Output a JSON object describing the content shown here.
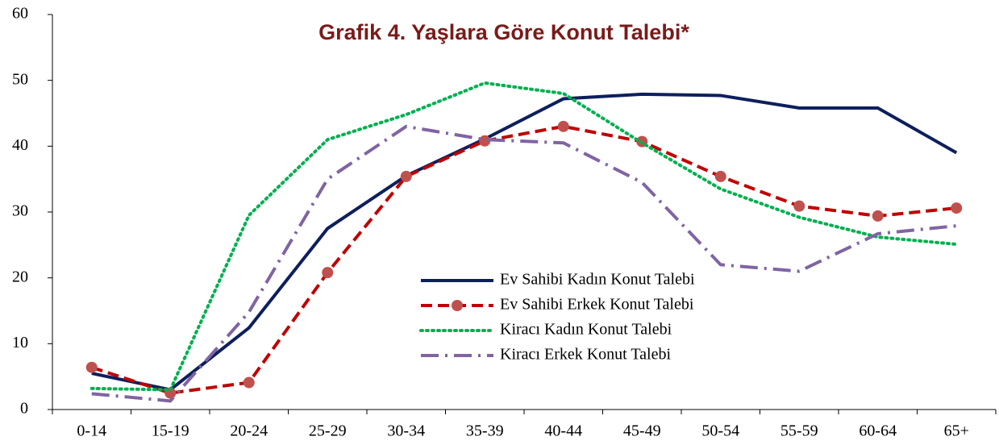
{
  "chart_data": {
    "type": "line",
    "title": "Grafik 4. Yaşlara Göre Konut Talebi*",
    "categories": [
      "0-14",
      "15-19",
      "20-24",
      "25-29",
      "30-34",
      "35-39",
      "40-44",
      "45-49",
      "50-54",
      "55-59",
      "60-64",
      "65+"
    ],
    "series": [
      {
        "name": "Ev Sahibi Kadın Konut Talebi",
        "color": "#0d1f5c",
        "line_style": "solid",
        "markers": false,
        "values": [
          5.5,
          3.0,
          12.4,
          27.5,
          35.5,
          41.1,
          47.2,
          47.9,
          47.7,
          45.8,
          45.8,
          39.0
        ]
      },
      {
        "name": "Ev Sahibi Erkek Konut Talebi",
        "color": "#c00000",
        "marker_color": "#c0504d",
        "line_style": "dashed",
        "markers": true,
        "values": [
          6.4,
          2.5,
          4.1,
          20.8,
          35.4,
          40.8,
          43.0,
          40.7,
          35.4,
          30.9,
          29.4,
          30.6
        ]
      },
      {
        "name": "Kiracı Kadın Konut Talebi",
        "color": "#00b050",
        "line_style": "dotted",
        "markers": false,
        "values": [
          3.2,
          3.0,
          29.5,
          41.0,
          44.8,
          49.6,
          48.0,
          40.5,
          33.5,
          29.2,
          26.2,
          25.1
        ]
      },
      {
        "name": "Kiracı Erkek Konut Talebi",
        "color": "#8064a2",
        "line_style": "dashdot",
        "markers": false,
        "values": [
          2.4,
          1.3,
          14.8,
          35.0,
          43.0,
          41.0,
          40.5,
          34.5,
          22.0,
          21.0,
          26.7,
          27.9
        ]
      }
    ],
    "ylim": [
      0,
      60
    ],
    "yticks": [
      0,
      10,
      20,
      30,
      40,
      50,
      60
    ],
    "grid": false
  }
}
